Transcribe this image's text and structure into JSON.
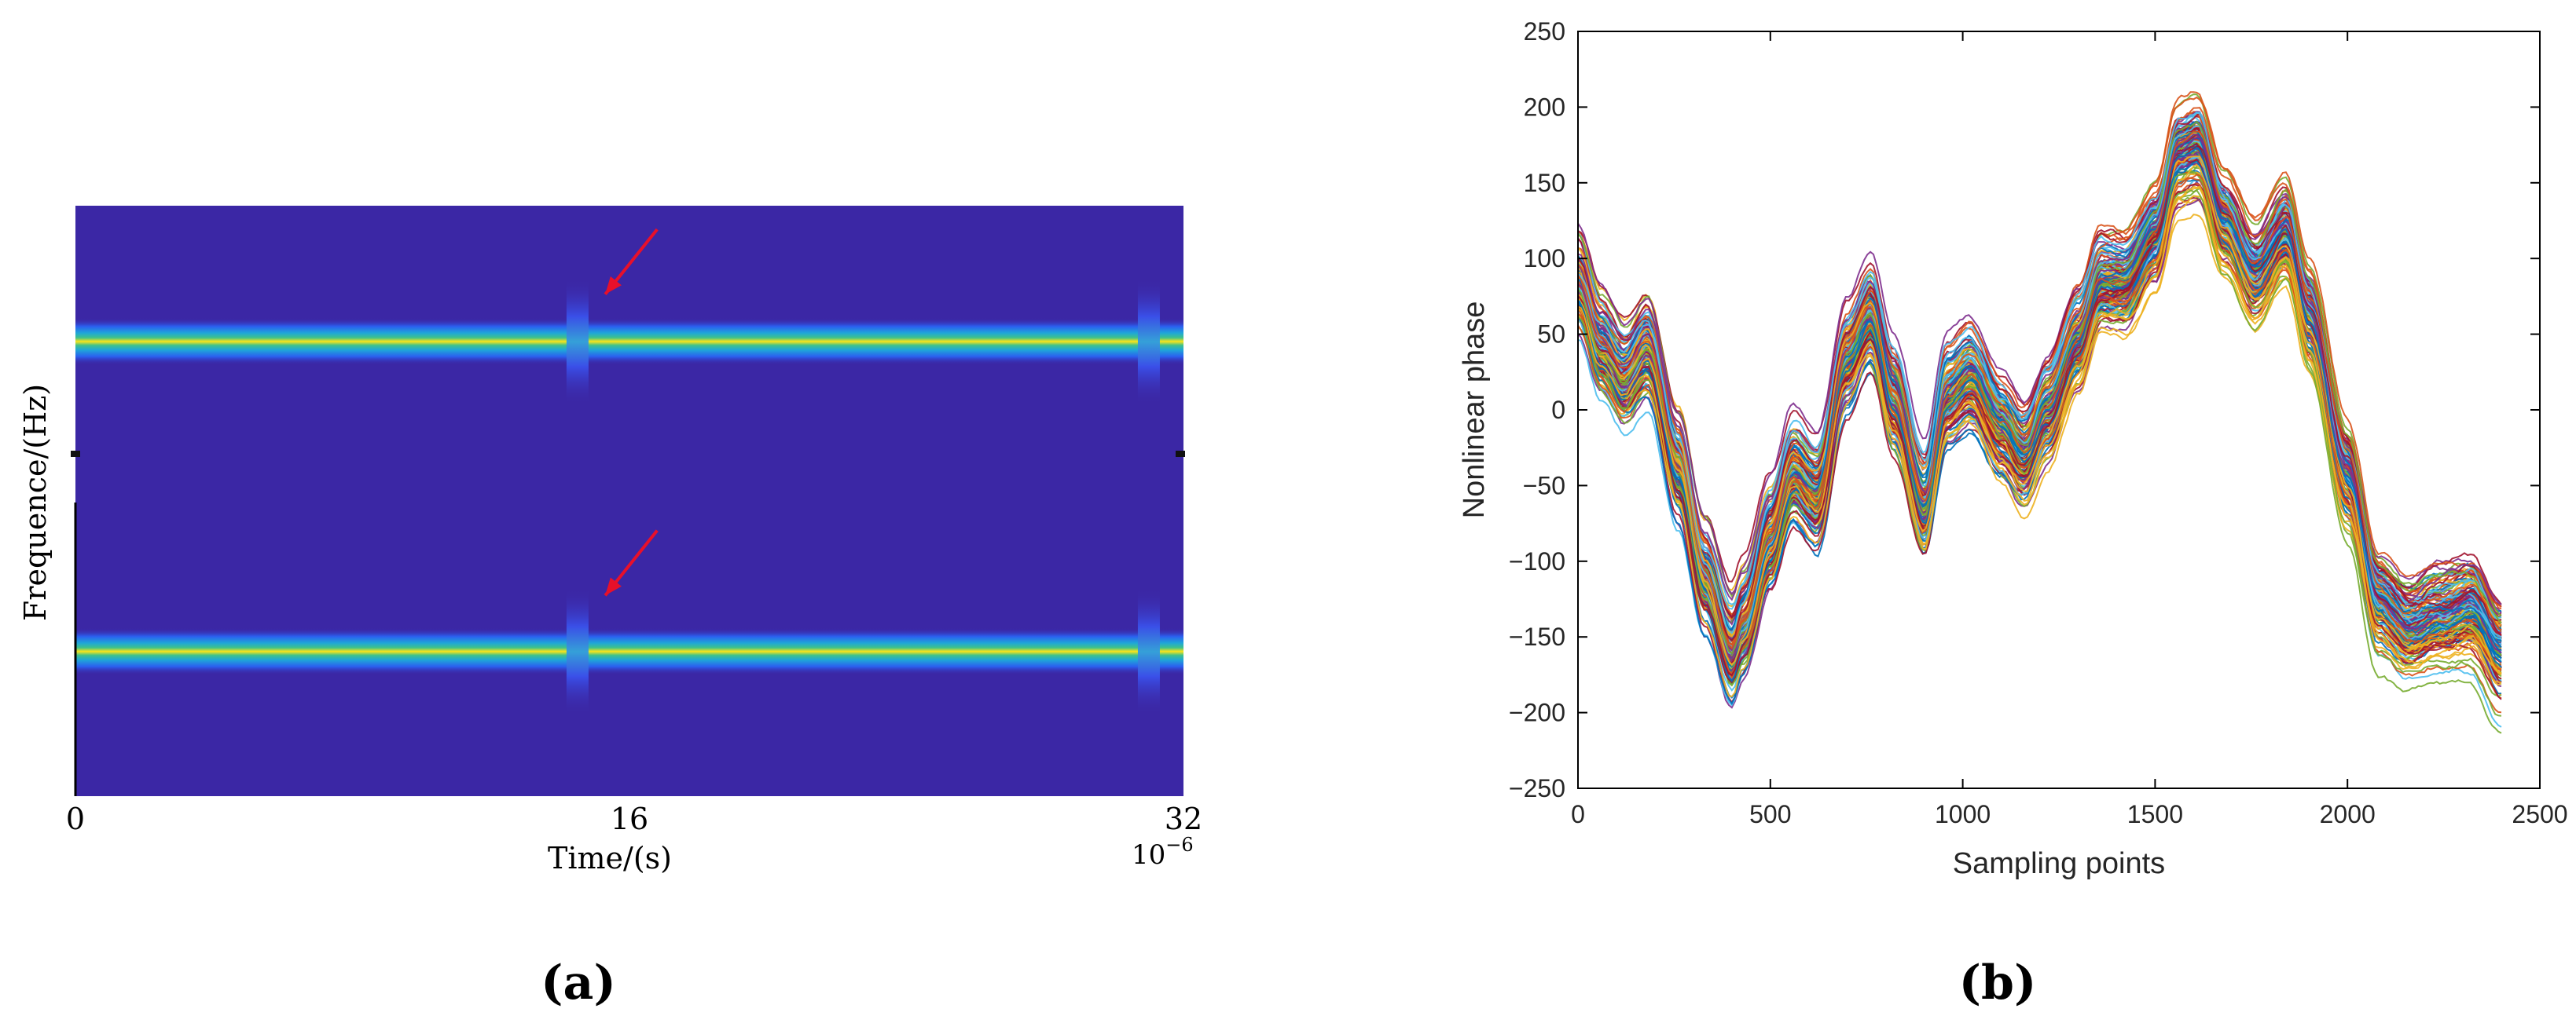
{
  "chart_data": [
    {
      "panel_label": "(a)",
      "type": "heatmap",
      "xlabel": "Time/(s)",
      "ylabel": "Frequence/(Hz)",
      "x_ticks": [
        "0",
        "16",
        "32"
      ],
      "x_range": [
        0,
        32
      ],
      "x_exponent": "10",
      "x_exponent_power": "−6",
      "bands": [
        {
          "center_fraction": 0.23,
          "interruption_time": 14.5,
          "interruption_time_2": 31.0
        },
        {
          "center_fraction": 0.755,
          "interruption_time": 14.5,
          "interruption_time_2": 31.0
        }
      ],
      "arrows": [
        {
          "tip_time": 15.3,
          "tip_fraction": 0.15,
          "tail_time": 16.8,
          "tail_fraction": 0.04
        },
        {
          "tip_time": 15.3,
          "tip_fraction": 0.66,
          "tail_time": 16.8,
          "tail_fraction": 0.55
        }
      ],
      "colors": {
        "background": "#3b27a5",
        "band_core": "#fbe41a",
        "band_mid": "#39c08f",
        "band_edge": "#1f9fdc",
        "arrow": "#e8102a"
      }
    },
    {
      "panel_label": "(b)",
      "type": "line",
      "xlabel": "Sampling points",
      "ylabel": "Nonlinear phase",
      "xlim": [
        0,
        2500
      ],
      "ylim": [
        -250,
        250
      ],
      "x_ticks": [
        "0",
        "500",
        "1000",
        "1500",
        "2000",
        "2500"
      ],
      "y_ticks": [
        "250",
        "200",
        "150",
        "100",
        "50",
        "0",
        "−50",
        "−100",
        "−150",
        "−200",
        "−250"
      ],
      "num_series": 150,
      "sample_range": [
        0,
        2400
      ],
      "mean_curve": {
        "x": [
          0,
          60,
          120,
          180,
          260,
          330,
          400,
          430,
          500,
          560,
          620,
          700,
          760,
          820,
          900,
          960,
          1020,
          1100,
          1160,
          1220,
          1300,
          1360,
          1420,
          1500,
          1560,
          1610,
          1680,
          1760,
          1840,
          1900,
          2000,
          2080,
          2160,
          2240,
          2320,
          2400
        ],
        "y": [
          82,
          42,
          22,
          42,
          -35,
          -110,
          -160,
          -142,
          -85,
          -40,
          -55,
          35,
          62,
          5,
          -65,
          8,
          22,
          -10,
          -30,
          0,
          45,
          85,
          85,
          118,
          170,
          175,
          125,
          90,
          120,
          65,
          -40,
          -125,
          -143,
          -135,
          -130,
          -158
        ]
      },
      "series_colors": [
        "#0072bd",
        "#d95319",
        "#edb120",
        "#7e2f8e",
        "#77ac30",
        "#4dbeee",
        "#a2142f"
      ]
    }
  ]
}
